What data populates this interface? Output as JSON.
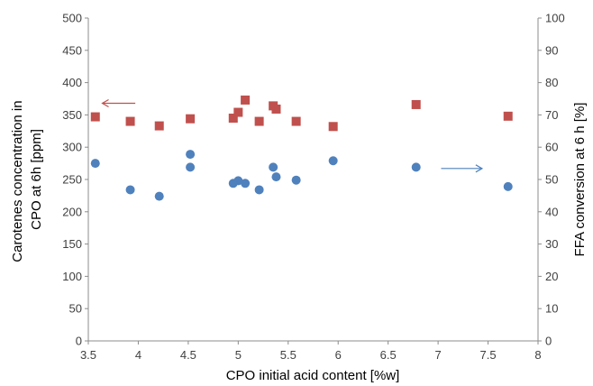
{
  "chart_data": {
    "type": "scatter",
    "xlabel": "CPO initial acid content [%w]",
    "ylabel_left": [
      "Carotenes concentration in",
      "CPO at 6h [ppm]"
    ],
    "ylabel_right": "FFA conversion at 6 h [%]",
    "xlim": [
      3.5,
      8
    ],
    "x_ticks": [
      "3.5",
      "4",
      "4.5",
      "5",
      "5.5",
      "6",
      "6.5",
      "7",
      "7.5",
      "8"
    ],
    "ylim_left": [
      0,
      500
    ],
    "y_left_ticks": [
      "0",
      "50",
      "100",
      "150",
      "200",
      "250",
      "300",
      "350",
      "400",
      "450",
      "500"
    ],
    "ylim_right": [
      0,
      100
    ],
    "y_right_ticks": [
      "0",
      "10",
      "20",
      "30",
      "40",
      "50",
      "60",
      "70",
      "80",
      "90",
      "100"
    ],
    "grid": false,
    "series": [
      {
        "marker": "circle",
        "color": "#4F81BD",
        "axis": "left",
        "points": [
          {
            "x": 3.57,
            "y": 275
          },
          {
            "x": 3.92,
            "y": 234
          },
          {
            "x": 4.21,
            "y": 224
          },
          {
            "x": 4.52,
            "y": 269
          },
          {
            "x": 4.52,
            "y": 289
          },
          {
            "x": 4.95,
            "y": 244
          },
          {
            "x": 5.0,
            "y": 248
          },
          {
            "x": 5.07,
            "y": 244
          },
          {
            "x": 5.21,
            "y": 234
          },
          {
            "x": 5.35,
            "y": 269
          },
          {
            "x": 5.38,
            "y": 254
          },
          {
            "x": 5.58,
            "y": 249
          },
          {
            "x": 5.95,
            "y": 279
          },
          {
            "x": 6.78,
            "y": 269
          },
          {
            "x": 7.7,
            "y": 239
          }
        ]
      },
      {
        "marker": "square",
        "color": "#C0504D",
        "axis": "right",
        "points": [
          {
            "x": 3.57,
            "y": 69.4
          },
          {
            "x": 3.92,
            "y": 68.0
          },
          {
            "x": 4.21,
            "y": 66.6
          },
          {
            "x": 4.52,
            "y": 68.8
          },
          {
            "x": 4.95,
            "y": 69.0
          },
          {
            "x": 5.0,
            "y": 70.8
          },
          {
            "x": 5.07,
            "y": 74.6
          },
          {
            "x": 5.21,
            "y": 68.0
          },
          {
            "x": 5.35,
            "y": 72.8
          },
          {
            "x": 5.38,
            "y": 71.8
          },
          {
            "x": 5.58,
            "y": 68.0
          },
          {
            "x": 5.95,
            "y": 66.4
          },
          {
            "x": 6.78,
            "y": 73.2
          },
          {
            "x": 7.7,
            "y": 69.6
          }
        ]
      }
    ],
    "annotations": [
      {
        "type": "arrow",
        "direction": "left",
        "color": "#C0504D",
        "x_from": 3.97,
        "x_to": 3.64,
        "axis": "left",
        "y": 368
      },
      {
        "type": "arrow",
        "direction": "right",
        "color": "#4F81BD",
        "x_from": 7.03,
        "x_to": 7.44,
        "axis": "left",
        "y": 267
      }
    ]
  }
}
